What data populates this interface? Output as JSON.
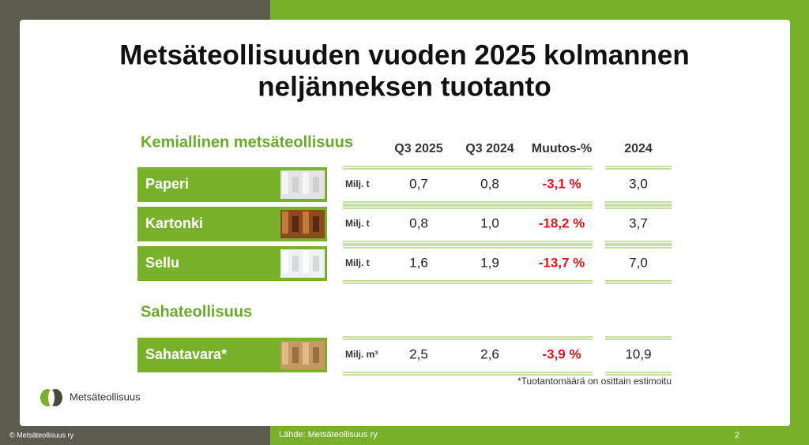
{
  "slide": {
    "title_lines": [
      "Metsäteollisuuden vuoden 2025 kolmannen",
      "neljänneksen tuotanto"
    ],
    "logo": "Metsäteollisuus",
    "footer": {
      "copyright": "© Metsäteollisuus ry",
      "source": "Lähde: Metsäteollisuus ry",
      "page": "2"
    }
  },
  "table": {
    "columns": [
      "Q3 2025",
      "Q3 2024",
      "Muutos-%",
      "2024"
    ],
    "sections": [
      {
        "title": "Kemiallinen metsäteollisuus",
        "rows": [
          {
            "label": "Paperi",
            "unit": "Milj. t",
            "cells": [
              "0,7",
              "0,8",
              "-3,1 %",
              "3,0"
            ]
          },
          {
            "label": "Kartonki",
            "unit": "Milj. t",
            "cells": [
              "0,8",
              "1,0",
              "-18,2 %",
              "3,7"
            ]
          },
          {
            "label": "Sellu",
            "unit": "Milj. t",
            "cells": [
              "1,6",
              "1,9",
              "-13,7 %",
              "7,0"
            ]
          }
        ]
      },
      {
        "title": "Sahateollisuus",
        "rows": [
          {
            "label": "Sahatavara*",
            "unit": "Milj. m³",
            "cells": [
              "2,5",
              "2,6",
              "-3,9 %",
              "10,9"
            ]
          }
        ]
      }
    ],
    "footnote": "*Tuotantomäärä on osittain estimoitu"
  }
}
